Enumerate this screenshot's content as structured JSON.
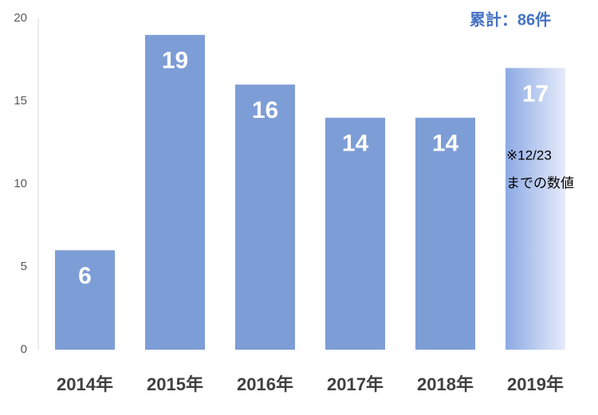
{
  "chart_data": {
    "type": "bar",
    "categories": [
      "2014年",
      "2015年",
      "2016年",
      "2017年",
      "2018年",
      "2019年"
    ],
    "values": [
      6,
      19,
      16,
      14,
      14,
      17
    ],
    "color": "#7d9dd6",
    "last_bar_gradient": [
      "#8caae4",
      "#e6ebfa"
    ],
    "ylim": [
      0,
      20
    ],
    "yticks": [
      0,
      5,
      10,
      15,
      20
    ],
    "grid": false,
    "total_annotation": "累計：86件",
    "note_annotation": [
      "※12/23",
      "までの数値"
    ]
  }
}
